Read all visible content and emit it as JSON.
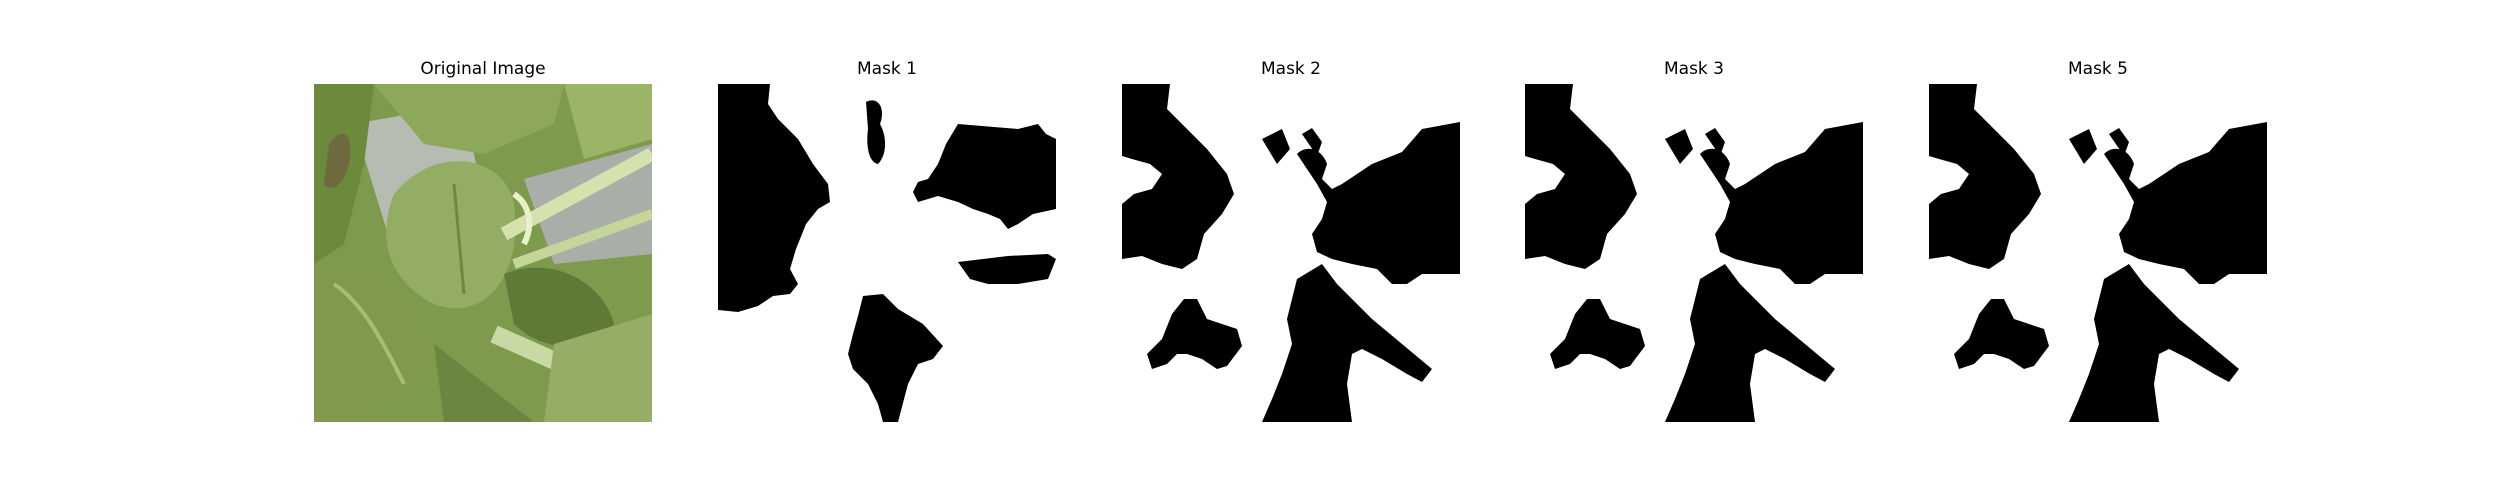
{
  "figure": {
    "panels": [
      {
        "title": "Original Image",
        "kind": "photo"
      },
      {
        "title": "Mask 1",
        "kind": "mask"
      },
      {
        "title": "Mask 2",
        "kind": "mask"
      },
      {
        "title": "Mask 3",
        "kind": "mask"
      },
      {
        "title": "Mask 5",
        "kind": "mask"
      }
    ]
  },
  "colors": {
    "background": "#ffffff",
    "mask_foreground": "#000000",
    "mask_background": "#ffffff",
    "leaf_dark": "#5e7a36",
    "leaf_mid": "#7e9a4c",
    "leaf_light": "#a6bd72",
    "stem": "#c9d9a4",
    "shadow_gray": "#a9aea8"
  }
}
